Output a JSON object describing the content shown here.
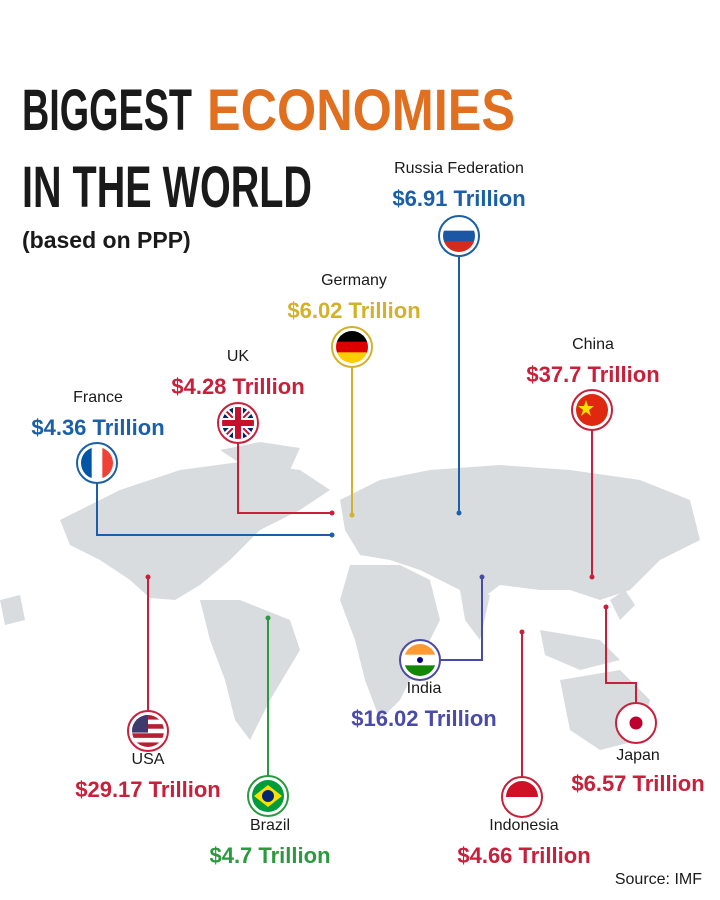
{
  "header": {
    "title_part1": "BIGGEST",
    "title_part2": "ECONOMIES",
    "title_line2": "IN THE WORLD",
    "subtitle": "(based on PPP)"
  },
  "countries": [
    {
      "name": "Russia Federation",
      "value": "$6.91 Trillion"
    },
    {
      "name": "Germany",
      "value": "$6.02 Trillion"
    },
    {
      "name": "UK",
      "value": "$4.28 Trillion"
    },
    {
      "name": "France",
      "value": "$4.36 Trillion"
    },
    {
      "name": "China",
      "value": "$37.7 Trillion"
    },
    {
      "name": "USA",
      "value": "$29.17 Trillion"
    },
    {
      "name": "Brazil",
      "value": "$4.7 Trillion"
    },
    {
      "name": "India",
      "value": "$16.02 Trillion"
    },
    {
      "name": "Indonesia",
      "value": "$4.66 Trillion"
    },
    {
      "name": "Japan",
      "value": "$6.57 Trillion"
    }
  ],
  "source": "Source: IMF"
}
